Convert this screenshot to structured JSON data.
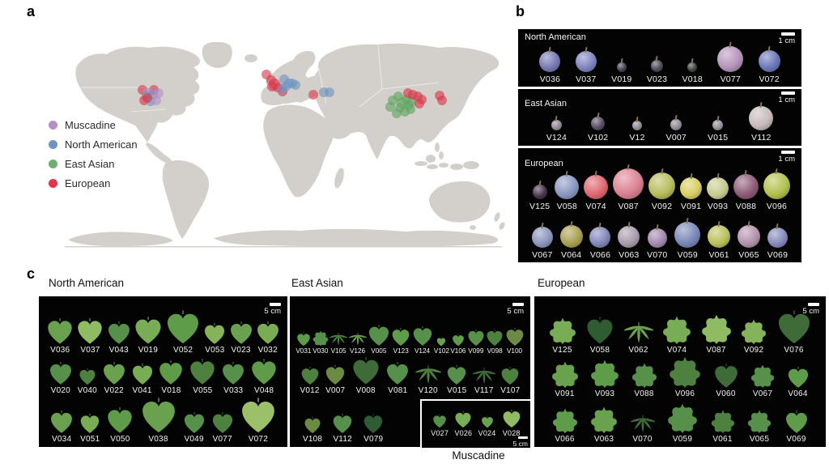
{
  "panels": {
    "a": {
      "label": "a",
      "legend": [
        {
          "name": "Muscadine",
          "color": "#b48fc6"
        },
        {
          "name": "North American",
          "color": "#6f94bf"
        },
        {
          "name": "East Asian",
          "color": "#6fae6f"
        },
        {
          "name": "European",
          "color": "#e0354a"
        }
      ],
      "dot_colors": {
        "R": "#d9374a",
        "B": "#6f94bf",
        "P": "#b48fc6",
        "G": "#5fa55f"
      },
      "map_dots": [
        [
          "R",
          104,
          59
        ],
        [
          "R",
          118,
          59
        ],
        [
          "P",
          111,
          62
        ],
        [
          "B",
          109,
          66
        ],
        [
          "B",
          117,
          65
        ],
        [
          "P",
          124,
          63
        ],
        [
          "R",
          106,
          72
        ],
        [
          "B",
          114,
          73
        ],
        [
          "P",
          121,
          72
        ],
        [
          "R",
          110,
          69
        ],
        [
          "R",
          257,
          40
        ],
        [
          "R",
          263,
          47
        ],
        [
          "R",
          267,
          52,
          7
        ],
        [
          "R",
          264,
          55
        ],
        [
          "R",
          271,
          56
        ],
        [
          "R",
          277,
          61
        ],
        [
          "B",
          279,
          46
        ],
        [
          "B",
          285,
          51
        ],
        [
          "B",
          289,
          51
        ],
        [
          "B",
          293,
          53
        ],
        [
          "B",
          281,
          55
        ],
        [
          "B",
          277,
          58
        ],
        [
          "R",
          315,
          65
        ],
        [
          "B",
          328,
          62
        ],
        [
          "B",
          335,
          62
        ],
        [
          "G",
          413,
          72
        ],
        [
          "G",
          420,
          67
        ],
        [
          "G",
          425,
          75,
          7
        ],
        [
          "G",
          430,
          71
        ],
        [
          "G",
          433,
          78
        ],
        [
          "G",
          422,
          81
        ],
        [
          "G",
          428,
          86
        ],
        [
          "G",
          435,
          83
        ],
        [
          "G",
          418,
          88
        ],
        [
          "G",
          437,
          73
        ],
        [
          "G",
          410,
          80
        ],
        [
          "R",
          432,
          63
        ],
        [
          "R",
          438,
          65
        ],
        [
          "R",
          444,
          67
        ],
        [
          "R",
          446,
          76
        ],
        [
          "R",
          449,
          71
        ],
        [
          "R",
          471,
          66
        ],
        [
          "R",
          474,
          72
        ]
      ]
    },
    "b": {
      "label": "b",
      "scale_label": "1 cm",
      "groups": [
        {
          "title": "North American",
          "rows": [
            [
              [
                "V036",
                26,
                "#7678b2"
              ],
              [
                "V037",
                26,
                "#7e82c0"
              ],
              [
                "V019",
                12,
                "#45404e"
              ],
              [
                "V023",
                15,
                "#4c4956"
              ],
              [
                "V018",
                12,
                "#3f4440"
              ],
              [
                "V077",
                32,
                "#b793bb"
              ],
              [
                "V072",
                27,
                "#6877b8"
              ]
            ]
          ]
        },
        {
          "title": "East Asian",
          "rows": [
            [
              [
                "V124",
                13,
                "#8f8694"
              ],
              [
                "V102",
                17,
                "#564d62"
              ],
              [
                "V12",
                12,
                "#8d8c96"
              ],
              [
                "V007",
                14,
                "#908a98"
              ],
              [
                "V015",
                13,
                "#948e96"
              ],
              [
                "V112",
                30,
                "#c6babc"
              ]
            ]
          ]
        },
        {
          "title": "European",
          "rows": [
            [
              [
                "V125",
                18,
                "#46334a"
              ],
              [
                "V058",
                30,
                "#8a96c0"
              ],
              [
                "V074",
                30,
                "#dd6670"
              ],
              [
                "V087",
                38,
                "#db8292"
              ],
              [
                "V092",
                33,
                "#b6bd5a"
              ],
              [
                "V091",
                27,
                "#d6ce60"
              ],
              [
                "V093",
                27,
                "#c5cc8e"
              ],
              [
                "V088",
                31,
                "#8e5a76"
              ],
              [
                "V096",
                33,
                "#b2c14c"
              ]
            ],
            [
              [
                "V067",
                26,
                "#8b94bd"
              ],
              [
                "V064",
                28,
                "#a89f52"
              ],
              [
                "V066",
                26,
                "#8186b8"
              ],
              [
                "V063",
                27,
                "#a89aab"
              ],
              [
                "V070",
                24,
                "#a287ae"
              ],
              [
                "V059",
                32,
                "#7888b6"
              ],
              [
                "V061",
                28,
                "#b9c05a"
              ],
              [
                "V065",
                28,
                "#b292ab"
              ],
              [
                "V069",
                25,
                "#8489bb"
              ]
            ]
          ]
        }
      ]
    },
    "c": {
      "label": "c",
      "scale_label": "5 cm",
      "groups": [
        {
          "title": "North American",
          "rows": [
            [
              [
                "V036",
                34,
                "#6aa14f",
                "c"
              ],
              [
                "V037",
                34,
                "#8fbc63",
                "c"
              ],
              [
                "V043",
                30,
                "#56904a",
                "c"
              ],
              [
                "V019",
                36,
                "#79ad55",
                "c"
              ],
              [
                "V052",
                44,
                "#5f9c49",
                "c"
              ],
              [
                "V053",
                28,
                "#86b35a",
                "c"
              ],
              [
                "V023",
                30,
                "#6aa14f",
                "c"
              ],
              [
                "V032",
                30,
                "#79ad55",
                "c"
              ]
            ],
            [
              [
                "V020",
                30,
                "#56904a",
                "c"
              ],
              [
                "V040",
                22,
                "#4e8040",
                "c"
              ],
              [
                "V022",
                30,
                "#6aa14f",
                "c"
              ],
              [
                "V041",
                28,
                "#79ad55",
                "c"
              ],
              [
                "V018",
                32,
                "#5f9c49",
                "c"
              ],
              [
                "V055",
                34,
                "#4e8040",
                "c"
              ],
              [
                "V033",
                30,
                "#56904a",
                "c"
              ],
              [
                "V048",
                34,
                "#5f9c49",
                "c"
              ]
            ],
            [
              [
                "V034",
                30,
                "#6aa14f",
                "c"
              ],
              [
                "V051",
                26,
                "#79ad55",
                "c"
              ],
              [
                "V050",
                34,
                "#5f9c49",
                "c"
              ],
              [
                "V038",
                46,
                "#6aa14f",
                "c"
              ],
              [
                "V049",
                28,
                "#56904a",
                "c"
              ],
              [
                "V077",
                28,
                "#4e8040",
                "c"
              ],
              [
                "V072",
                46,
                "#9cc06a",
                "c"
              ]
            ]
          ]
        },
        {
          "title": "East Asian",
          "rows": [
            [
              [
                "V031",
                18,
                "#5f9c49",
                "c"
              ],
              [
                "V030",
                20,
                "#56904a",
                "l"
              ],
              [
                "V105",
                22,
                "#4e8040",
                "d"
              ],
              [
                "V126",
                22,
                "#6aa14f",
                "d"
              ],
              [
                "V005",
                28,
                "#56904a",
                "c"
              ],
              [
                "V123",
                24,
                "#5f9c49",
                "c"
              ],
              [
                "V124",
                26,
                "#56904a",
                "c"
              ],
              [
                "V102",
                12,
                "#6aa14f",
                "c"
              ],
              [
                "V106",
                16,
                "#5f9c49",
                "c"
              ],
              [
                "V099",
                22,
                "#56904a",
                "c"
              ],
              [
                "V098",
                22,
                "#4e8040",
                "c"
              ],
              [
                "V100",
                24,
                "#6b8a44",
                "c"
              ]
            ],
            [
              [
                "V012",
                24,
                "#4e8040",
                "c"
              ],
              [
                "V007",
                26,
                "#6b8a44",
                "c"
              ],
              [
                "V008",
                36,
                "#3f6b38",
                "c"
              ],
              [
                "V081",
                30,
                "#56904a",
                "c"
              ],
              [
                "V120",
                32,
                "#4e8040",
                "d"
              ],
              [
                "V015",
                26,
                "#56904a",
                "c"
              ],
              [
                "V117",
                28,
                "#3f6b38",
                "d"
              ],
              [
                "V107",
                24,
                "#4e8040",
                "c"
              ]
            ],
            [
              [
                "V108",
                22,
                "#6b8a44",
                "c"
              ],
              [
                "V112",
                26,
                "#56904a",
                "c"
              ],
              [
                "V079",
                26,
                "#2f5c33",
                "c"
              ]
            ]
          ],
          "inset": {
            "title": "Muscadine",
            "scale_label": "5 cm",
            "leaves": [
              [
                "V027",
                18,
                "#56904a",
                "c"
              ],
              [
                "V026",
                22,
                "#79ad55",
                "c"
              ],
              [
                "V024",
                16,
                "#6aa14f",
                "c"
              ],
              [
                "V028",
                24,
                "#8fbc63",
                "c"
              ]
            ]
          }
        },
        {
          "title": "European",
          "rows": [
            [
              [
                "V125",
                34,
                "#79ad55",
                "l"
              ],
              [
                "V058",
                36,
                "#2f5c33",
                "c"
              ],
              [
                "V062",
                36,
                "#6aa14f",
                "d"
              ],
              [
                "V074",
                36,
                "#79ad55",
                "l"
              ],
              [
                "V087",
                38,
                "#8fbc63",
                "l"
              ],
              [
                "V092",
                32,
                "#86b35a",
                "l"
              ],
              [
                "V076",
                44,
                "#3f6b38",
                "c"
              ]
            ],
            [
              [
                "V091",
                34,
                "#6aa14f",
                "l"
              ],
              [
                "V093",
                36,
                "#5f9c49",
                "l"
              ],
              [
                "V088",
                32,
                "#56904a",
                "l"
              ],
              [
                "V096",
                40,
                "#4e8040",
                "l"
              ],
              [
                "V060",
                32,
                "#3f6b38",
                "c"
              ],
              [
                "V067",
                30,
                "#56904a",
                "l"
              ],
              [
                "V064",
                28,
                "#5f9c49",
                "c"
              ]
            ],
            [
              [
                "V066",
                32,
                "#5f9c49",
                "l"
              ],
              [
                "V063",
                34,
                "#6aa14f",
                "l"
              ],
              [
                "V070",
                30,
                "#3f6b38",
                "d"
              ],
              [
                "V059",
                38,
                "#56904a",
                "l"
              ],
              [
                "V061",
                30,
                "#4e8040",
                "l"
              ],
              [
                "V065",
                30,
                "#56904a",
                "l"
              ],
              [
                "V069",
                30,
                "#5f9c49",
                "c"
              ]
            ]
          ]
        }
      ]
    }
  }
}
